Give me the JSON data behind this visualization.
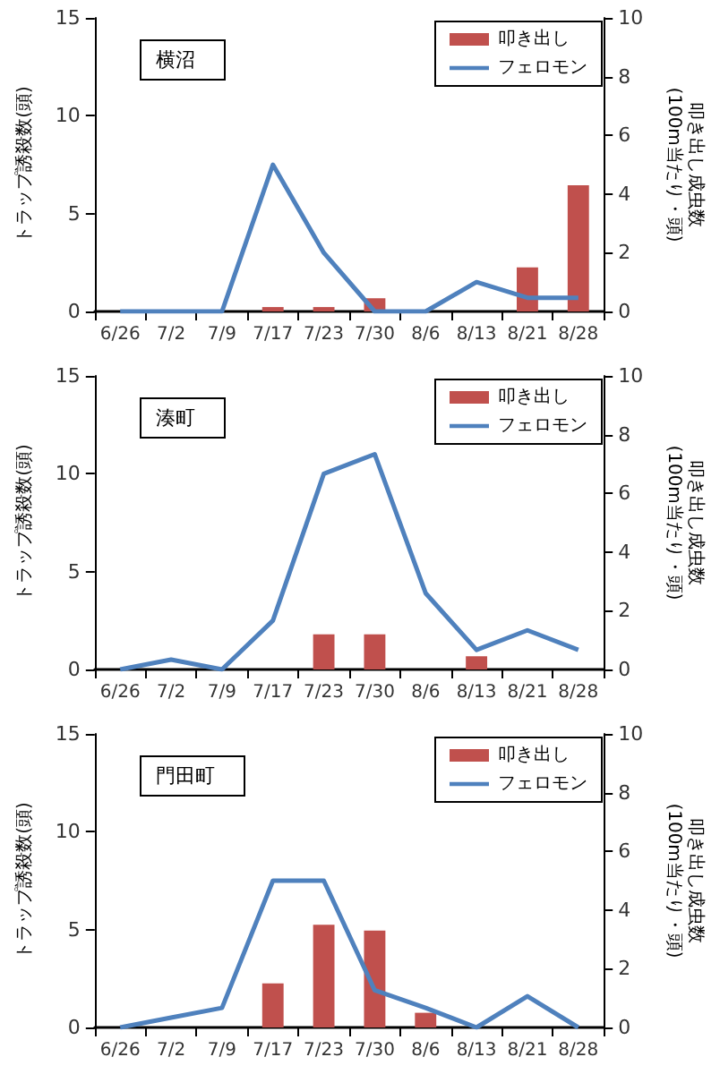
{
  "chart_data": [
    {
      "type": "bar",
      "categories": [
        "6/26",
        "7/2",
        "7/9",
        "7/17",
        "7/23",
        "7/30",
        "8/6",
        "8/13",
        "8/21",
        "8/28"
      ],
      "ylabel": "トラップ誘殺数(頭)",
      "y2label": "叩き出し成虫数(100m当たり・頭)",
      "annotations": [
        "横沼"
      ],
      "ylim": [
        0,
        15
      ],
      "yticks": [
        0,
        5,
        10,
        15
      ],
      "y2lim": [
        0,
        10
      ],
      "y2ticks": [
        0,
        2,
        4,
        6,
        8,
        10
      ],
      "legend": "top right",
      "grid": false,
      "series": [
        {
          "name": "叩き出し",
          "axis": "y2",
          "color": "#c0504d",
          "values": [
            null,
            null,
            null,
            0.15,
            0.15,
            0.45,
            null,
            null,
            1.5,
            4.3
          ]
        },
        {
          "name": "フェロモン",
          "type": "line",
          "color": "#4f81bd",
          "marker": "none",
          "values": [
            0,
            0,
            0,
            7.5,
            3.0,
            0,
            0,
            1.5,
            0.7,
            0.7
          ]
        }
      ]
    },
    {
      "type": "bar",
      "categories": [
        "6/26",
        "7/2",
        "7/9",
        "7/17",
        "7/23",
        "7/30",
        "8/6",
        "8/13",
        "8/21",
        "8/28"
      ],
      "ylabel": "トラップ誘殺数(頭)",
      "y2label": "叩き出し成虫数(100m当たり・頭)",
      "annotations": [
        "湊町"
      ],
      "ylim": [
        0,
        15
      ],
      "yticks": [
        0,
        5,
        10,
        15
      ],
      "y2lim": [
        0,
        10
      ],
      "y2ticks": [
        0,
        2,
        4,
        6,
        8,
        10
      ],
      "legend": "top right",
      "grid": false,
      "series": [
        {
          "name": "叩き出し",
          "axis": "y2",
          "color": "#c0504d",
          "values": [
            null,
            null,
            null,
            null,
            1.2,
            1.2,
            null,
            0.45,
            null,
            null
          ]
        },
        {
          "name": "フェロモン",
          "type": "line",
          "color": "#4f81bd",
          "marker": "none",
          "values": [
            0,
            0.5,
            0,
            2.5,
            10,
            11,
            3.9,
            1.0,
            2.0,
            1.0
          ]
        }
      ]
    },
    {
      "type": "bar",
      "categories": [
        "6/26",
        "7/2",
        "7/9",
        "7/17",
        "7/23",
        "7/30",
        "8/6",
        "8/13",
        "8/21",
        "8/28"
      ],
      "ylabel": "トラップ誘殺数(頭)",
      "y2label": "叩き出し成虫数(100m当たり・頭)",
      "annotations": [
        "門田町"
      ],
      "ylim": [
        0,
        15
      ],
      "yticks": [
        0,
        5,
        10,
        15
      ],
      "y2lim": [
        0,
        10
      ],
      "y2ticks": [
        0,
        2,
        4,
        6,
        8,
        10
      ],
      "legend": "top right",
      "grid": false,
      "series": [
        {
          "name": "叩き出し",
          "axis": "y2",
          "color": "#c0504d",
          "values": [
            null,
            null,
            null,
            1.5,
            3.5,
            3.3,
            0.5,
            null,
            null,
            null
          ]
        },
        {
          "name": "フェロモン",
          "type": "line",
          "color": "#4f81bd",
          "marker": "none",
          "values": [
            0,
            0.5,
            1.0,
            7.5,
            7.5,
            1.9,
            1.0,
            0,
            1.6,
            0
          ]
        }
      ]
    }
  ]
}
